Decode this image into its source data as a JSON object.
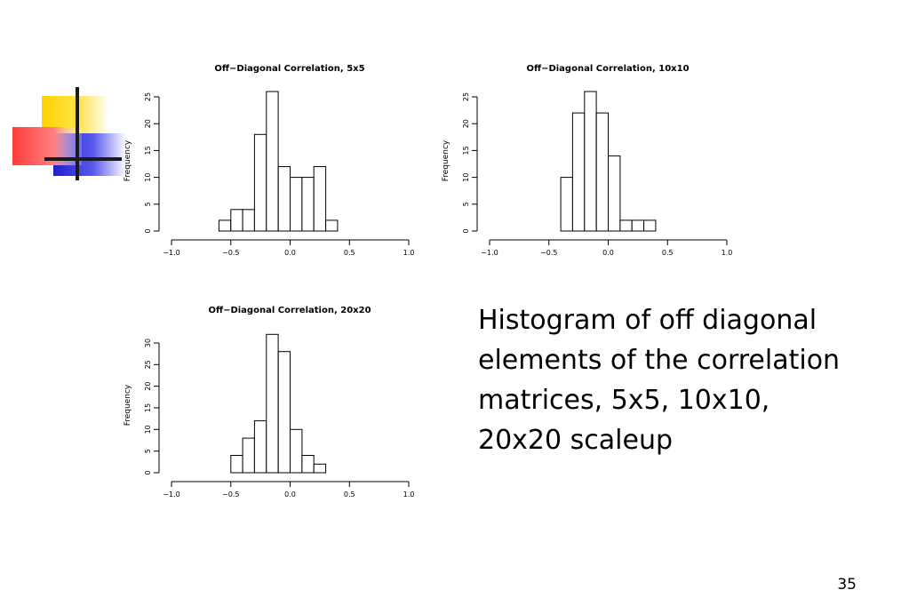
{
  "slide": {
    "caption_lines": [
      "Histogram of off diagonal",
      "elements of the correlation",
      "matrices, 5x5, 10x10,",
      "20x20 scaleup"
    ],
    "page_number": "35"
  },
  "chart_data": [
    {
      "type": "bar",
      "title": "Off−Diagonal Correlation, 5x5",
      "xlabel": "",
      "ylabel": "Frequency",
      "x_ticks": [
        "−1.0",
        "−0.5",
        "0.0",
        "0.5",
        "1.0"
      ],
      "y_ticks": [
        "0",
        "5",
        "10",
        "15",
        "20",
        "25"
      ],
      "xlim": [
        -1.0,
        1.0
      ],
      "ylim": [
        0,
        25
      ],
      "bin_width": 0.1,
      "bin_edges_start": [
        -0.6,
        -0.5,
        -0.4,
        -0.3,
        -0.2,
        -0.1,
        0.0,
        0.1,
        0.2,
        0.3
      ],
      "values": [
        2,
        4,
        4,
        18,
        26,
        12,
        10,
        10,
        12,
        2
      ]
    },
    {
      "type": "bar",
      "title": "Off−Diagonal Correlation, 10x10",
      "xlabel": "",
      "ylabel": "Frequency",
      "x_ticks": [
        "−1.0",
        "−0.5",
        "0.0",
        "0.5",
        "1.0"
      ],
      "y_ticks": [
        "0",
        "5",
        "10",
        "15",
        "20",
        "25"
      ],
      "xlim": [
        -1.0,
        1.0
      ],
      "ylim": [
        0,
        25
      ],
      "bin_width": 0.1,
      "bin_edges_start": [
        -0.4,
        -0.3,
        -0.2,
        -0.1,
        0.0,
        0.1,
        0.2,
        0.3
      ],
      "values": [
        10,
        22,
        26,
        22,
        14,
        2,
        2,
        2
      ]
    },
    {
      "type": "bar",
      "title": "Off−Diagonal Correlation, 20x20",
      "xlabel": "",
      "ylabel": "Frequency",
      "x_ticks": [
        "−1.0",
        "−0.5",
        "0.0",
        "0.5",
        "1.0"
      ],
      "y_ticks": [
        "0",
        "5",
        "10",
        "15",
        "20",
        "25",
        "30"
      ],
      "xlim": [
        -1.0,
        1.0
      ],
      "ylim": [
        0,
        30
      ],
      "bin_width": 0.1,
      "bin_edges_start": [
        -0.5,
        -0.4,
        -0.3,
        -0.2,
        -0.1,
        0.0,
        0.1,
        0.2
      ],
      "values": [
        4,
        8,
        12,
        32,
        28,
        10,
        4,
        2
      ]
    }
  ],
  "colors": {
    "logo_yellow": "#ffd200",
    "logo_red": "#ff3b3b",
    "logo_blue": "#2222cc",
    "logo_lines": "#1a1a1a",
    "bar_fill": "#ffffff",
    "bar_stroke": "#000000"
  },
  "icons": [
    "decorative-squares-logo-icon"
  ]
}
